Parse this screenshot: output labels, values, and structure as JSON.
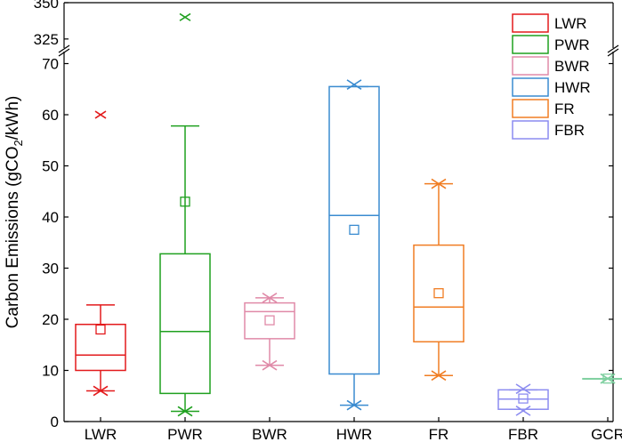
{
  "chart_data": {
    "type": "box",
    "title": "",
    "xlabel": "",
    "ylabel": {
      "main": "Carbon Emissions (gCO",
      "subscript": "2",
      "suffix": "/kWh)"
    },
    "ylim_lower": [
      0,
      72
    ],
    "ylim_upper": [
      320,
      350
    ],
    "yticks_lower": [
      0,
      10,
      20,
      30,
      40,
      50,
      60,
      70
    ],
    "yticks_upper": [
      325,
      350
    ],
    "categories": [
      "LWR",
      "PWR",
      "BWR",
      "HWR",
      "FR",
      "FBR",
      "GCR"
    ],
    "legend": {
      "position": "top-right",
      "entries": [
        "LWR",
        "PWR",
        "BWR",
        "HWR",
        "FR",
        "FBR"
      ]
    },
    "series": [
      {
        "name": "LWR",
        "color": "#e31a1c",
        "q1": 10,
        "median": 13,
        "q3": 19,
        "whisker_low": 6,
        "whisker_high": 22.8,
        "mean": 18,
        "min_marker": 6,
        "max_marker": null,
        "outliers": [
          60
        ]
      },
      {
        "name": "PWR",
        "color": "#1fa01f",
        "q1": 5.5,
        "median": 17.6,
        "q3": 32.8,
        "whisker_low": 2,
        "whisker_high": 57.8,
        "mean": 43,
        "min_marker": 2,
        "max_marker": null,
        "outliers": [
          340
        ]
      },
      {
        "name": "BWR",
        "color": "#e08aa8",
        "q1": 16.2,
        "median": 21.5,
        "q3": 23.2,
        "whisker_low": 11,
        "whisker_high": 24.2,
        "mean": 19.8,
        "min_marker": 11,
        "max_marker": 24.2,
        "outliers": []
      },
      {
        "name": "HWR",
        "color": "#3a8bd0",
        "q1": 9.3,
        "median": 40.3,
        "q3": 65.5,
        "whisker_low": 3.2,
        "whisker_high": 65.5,
        "mean": 37.5,
        "min_marker": 3.2,
        "max_marker": 65.9,
        "outliers": []
      },
      {
        "name": "FR",
        "color": "#f07d23",
        "q1": 15.6,
        "median": 22.4,
        "q3": 34.5,
        "whisker_low": 9,
        "whisker_high": 46.5,
        "mean": 25.1,
        "min_marker": 9,
        "max_marker": 46.5,
        "outliers": []
      },
      {
        "name": "FBR",
        "color": "#8c8cf0",
        "q1": 2.4,
        "median": 4.4,
        "q3": 6.2,
        "whisker_low": 2.4,
        "whisker_high": 6.2,
        "mean": 4.5,
        "min_marker": 2.1,
        "max_marker": 6.4,
        "outliers": []
      },
      {
        "name": "GCR",
        "color": "#7fd0a0",
        "q1": 8.4,
        "median": 8.4,
        "q3": 8.4,
        "whisker_low": 8.4,
        "whisker_high": 8.4,
        "mean": 8.4,
        "min_marker": 8.4,
        "max_marker": 8.4,
        "outliers": []
      }
    ]
  }
}
